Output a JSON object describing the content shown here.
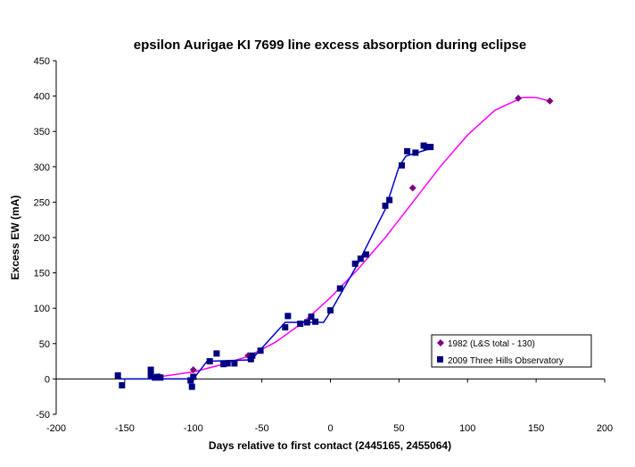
{
  "chart_data": {
    "type": "scatter",
    "title": "epsilon Aurigae   KI 7699 line excess absorption during eclipse",
    "xlabel": "Days relative to first contact (2445165, 2455064)",
    "ylabel": "Excess EW (mA)",
    "xlim": [
      -200,
      200
    ],
    "ylim": [
      -50,
      450
    ],
    "x_ticks": [
      -200,
      -150,
      -100,
      -50,
      0,
      50,
      100,
      150,
      200
    ],
    "y_ticks": [
      -50,
      0,
      50,
      100,
      150,
      200,
      250,
      300,
      350,
      400,
      450
    ],
    "grid": false,
    "legend_position": "bottom-right",
    "series": [
      {
        "name": "1982 (L&S total - 130)",
        "color": "#800080",
        "marker": "diamond",
        "points": [
          [
            -125,
            3
          ],
          [
            -100,
            13
          ],
          [
            -60,
            33
          ],
          [
            60,
            270
          ],
          [
            137,
            397
          ],
          [
            160,
            393
          ]
        ],
        "trend": {
          "color": "#ff00ff",
          "points": [
            [
              -125,
              3
            ],
            [
              -100,
              10
            ],
            [
              -80,
              20
            ],
            [
              -60,
              32
            ],
            [
              -40,
              52
            ],
            [
              -20,
              80
            ],
            [
              0,
              115
            ],
            [
              20,
              155
            ],
            [
              40,
              200
            ],
            [
              60,
              250
            ],
            [
              80,
              300
            ],
            [
              100,
              345
            ],
            [
              120,
              380
            ],
            [
              140,
              398
            ],
            [
              150,
              398
            ],
            [
              160,
              393
            ]
          ]
        }
      },
      {
        "name": "2009 Three Hills Observatory",
        "color": "#000080",
        "marker": "square",
        "points": [
          [
            -155,
            5
          ],
          [
            -152,
            -9
          ],
          [
            -131,
            13
          ],
          [
            -131,
            5
          ],
          [
            -128,
            2
          ],
          [
            -126,
            3
          ],
          [
            -124,
            2
          ],
          [
            -102,
            -2
          ],
          [
            -101,
            -11
          ],
          [
            -100,
            3
          ],
          [
            -88,
            25
          ],
          [
            -83,
            36
          ],
          [
            -78,
            21
          ],
          [
            -75,
            22
          ],
          [
            -70,
            22
          ],
          [
            -58,
            28
          ],
          [
            -57,
            33
          ],
          [
            -51,
            40
          ],
          [
            -33,
            73
          ],
          [
            -31,
            89
          ],
          [
            -22,
            78
          ],
          [
            -17,
            80
          ],
          [
            -14,
            88
          ],
          [
            -11,
            81
          ],
          [
            0,
            97
          ],
          [
            7,
            128
          ],
          [
            18,
            163
          ],
          [
            22,
            170
          ],
          [
            26,
            176
          ],
          [
            40,
            245
          ],
          [
            43,
            253
          ],
          [
            52,
            302
          ],
          [
            56,
            322
          ],
          [
            62,
            320
          ],
          [
            68,
            330
          ],
          [
            70,
            328
          ],
          [
            73,
            328
          ]
        ],
        "trend": {
          "color": "#0000cc",
          "points": [
            [
              -155,
              0
            ],
            [
              -130,
              0
            ],
            [
              -100,
              0
            ],
            [
              -90,
              25
            ],
            [
              -58,
              27
            ],
            [
              -55,
              33
            ],
            [
              -33,
              80
            ],
            [
              -15,
              80
            ],
            [
              -5,
              80
            ],
            [
              0,
              95
            ],
            [
              20,
              163
            ],
            [
              40,
              240
            ],
            [
              50,
              300
            ],
            [
              55,
              315
            ],
            [
              75,
              327
            ]
          ]
        }
      }
    ]
  }
}
